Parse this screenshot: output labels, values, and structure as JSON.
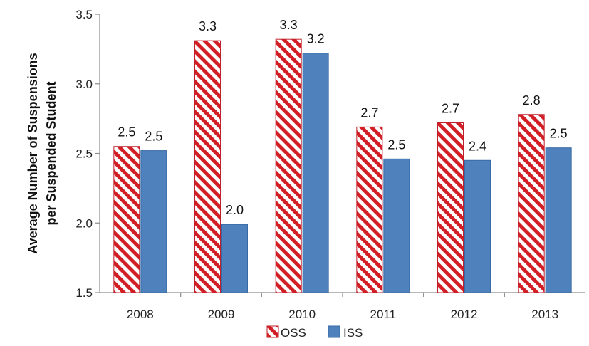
{
  "chart_data": {
    "type": "bar",
    "categories": [
      "2008",
      "2009",
      "2010",
      "2011",
      "2012",
      "2013"
    ],
    "series": [
      {
        "name": "OSS",
        "values": [
          2.55,
          3.31,
          3.32,
          2.69,
          2.72,
          2.78
        ],
        "labels": [
          "2.5",
          "3.3",
          "3.3",
          "2.7",
          "2.7",
          "2.8"
        ],
        "pattern": "red-white-diagonal-stripes",
        "color": "#d21f26"
      },
      {
        "name": "ISS",
        "values": [
          2.52,
          1.99,
          3.22,
          2.46,
          2.45,
          2.54
        ],
        "labels": [
          "2.5",
          "2.0",
          "3.2",
          "2.5",
          "2.4",
          "2.5"
        ],
        "pattern": "solid",
        "color": "#4f81bd"
      }
    ],
    "ylabel_lines": [
      "Average Number of Suspensions",
      "per Suspended Student"
    ],
    "xlabel": "",
    "ylim": [
      1.5,
      3.5
    ],
    "yticks": [
      "1.5",
      "2.0",
      "2.5",
      "3.0",
      "3.5"
    ],
    "grid": false,
    "legend_position": "bottom-center"
  }
}
